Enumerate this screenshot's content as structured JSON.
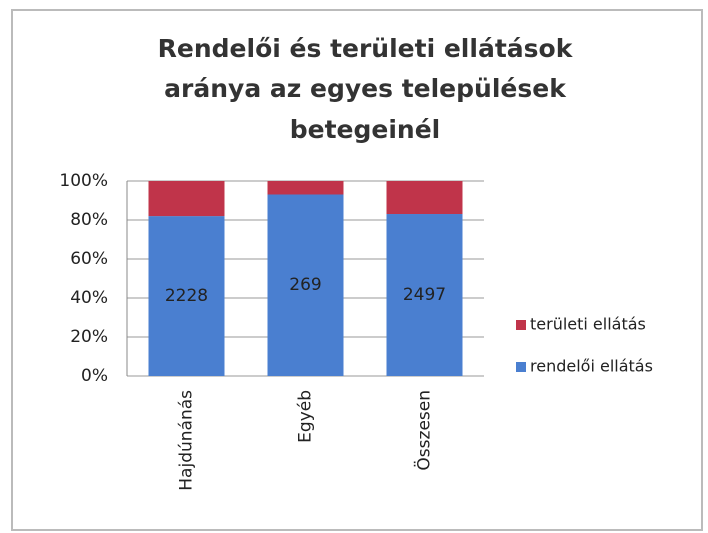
{
  "chart_data": {
    "type": "bar",
    "stacking": "percent",
    "title": [
      "Rendelői és területi ellátások",
      "aránya az egyes települések",
      "betegeinél"
    ],
    "categories": [
      "Hajdúnánás",
      "Egyéb",
      "Összesen"
    ],
    "series": [
      {
        "name": "rendelői ellátás",
        "color": "#4a7fd0",
        "values": [
          2228,
          269,
          2497
        ],
        "data_labels": true
      },
      {
        "name": "területi ellátás",
        "color": "#c0344a",
        "values": [
          489,
          20,
          509
        ],
        "data_labels": false
      }
    ],
    "ylim": [
      0,
      100
    ],
    "yticks": [
      {
        "value": 0,
        "label": "0%"
      },
      {
        "value": 20,
        "label": "20%"
      },
      {
        "value": 40,
        "label": "40%"
      },
      {
        "value": 60,
        "label": "60%"
      },
      {
        "value": 80,
        "label": "80%"
      },
      {
        "value": 100,
        "label": "100%"
      }
    ],
    "grid": true,
    "legend": "right"
  }
}
